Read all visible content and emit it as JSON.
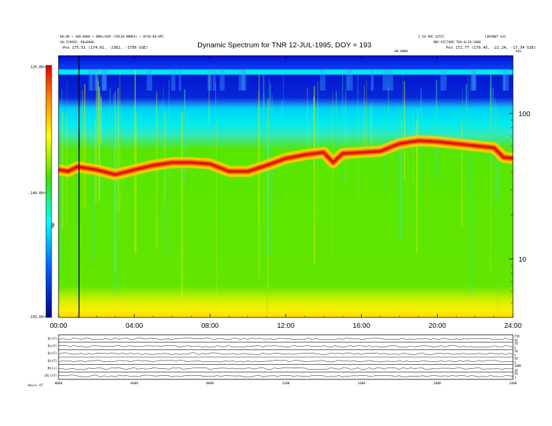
{
  "header": {
    "title": "Dynamic Spectrum for TNR 12-JUL-1995, DOY = 193",
    "left_top_1": "00:00 • 100:0000 • 6MHz/0GP (T0E10:00MEA) • 0F40:00:0PC",
    "left_top_2": "A0:JF8892: #0x0000",
    "left_pos": "Pos 175.51 (174.01, -2382, -1756 GSE)",
    "right_top_1": "1:10 V0C:2UTCC",
    "right_top_2": "L0G900T-eG1",
    "right_top_3": "M0C:PICTURE  TRU:8/20:2080",
    "right_pos": "Pos 172.77 (170.45, -22.24, -17.34 GSE)",
    "center_small": "00:0000",
    "freq_unit": "kHz"
  },
  "colorbar": {
    "ticks": [
      "-125.00",
      "-140.00",
      "-155.00"
    ],
    "label": "TNR"
  },
  "colors": {
    "background": "#58e600",
    "band": "#e0180c",
    "cyan": "#00eaf0",
    "blue": "#0b3ff0",
    "deep_blue": "#0410d6",
    "yellow": "#ffee00",
    "marker": "#000000"
  },
  "chart_data": {
    "type": "heatmap",
    "title": "Dynamic Spectrum for TNR 12-JUL-1995, DOY = 193",
    "x_ticks": [
      "00:00",
      "04:00",
      "08:00",
      "12:00",
      "16:00",
      "20:00",
      "24:00"
    ],
    "y_ticks": [
      "100",
      "10"
    ],
    "colorbar_range": [
      -155,
      -125
    ],
    "marker_time": "01:05",
    "band_trace": [
      {
        "t": 0.0,
        "f": 41
      },
      {
        "t": 0.5,
        "f": 40
      },
      {
        "t": 1.0,
        "f": 43
      },
      {
        "t": 2.0,
        "f": 41
      },
      {
        "t": 3.0,
        "f": 38
      },
      {
        "t": 4.0,
        "f": 41
      },
      {
        "t": 5.0,
        "f": 44
      },
      {
        "t": 6.0,
        "f": 46
      },
      {
        "t": 7.0,
        "f": 46
      },
      {
        "t": 8.0,
        "f": 45
      },
      {
        "t": 9.0,
        "f": 40
      },
      {
        "t": 10.0,
        "f": 40
      },
      {
        "t": 11.0,
        "f": 44
      },
      {
        "t": 12.0,
        "f": 49
      },
      {
        "t": 13.0,
        "f": 52
      },
      {
        "t": 14.0,
        "f": 54
      },
      {
        "t": 14.5,
        "f": 46
      },
      {
        "t": 15.0,
        "f": 53
      },
      {
        "t": 16.0,
        "f": 54
      },
      {
        "t": 17.0,
        "f": 55
      },
      {
        "t": 18.0,
        "f": 62
      },
      {
        "t": 19.0,
        "f": 65
      },
      {
        "t": 20.0,
        "f": 64
      },
      {
        "t": 21.0,
        "f": 62
      },
      {
        "t": 22.0,
        "f": 60
      },
      {
        "t": 23.0,
        "f": 58
      },
      {
        "t": 23.5,
        "f": 50
      },
      {
        "t": 24.0,
        "f": 49
      }
    ]
  },
  "bottom_panel": {
    "rows": [
      {
        "label": "B(nT)",
        "right": [
          "250",
          "50"
        ]
      },
      {
        "label": "B(nT)",
        "right": [
          "20",
          "5"
        ]
      },
      {
        "label": "B(nT)",
        "right": [
          "20",
          "5"
        ]
      },
      {
        "label": "B(nT)",
        "right": [
          "20",
          "5"
        ]
      },
      {
        "label": "N(cc)",
        "right": [
          "1000",
          "10"
        ]
      },
      {
        "label": "|B|(nT)",
        "right": [
          "20",
          "1"
        ]
      }
    ],
    "x_ticks": [
      "0000",
      "0400",
      "0800",
      "1200",
      "1600",
      "2000",
      "2400"
    ],
    "footer": "Hours UT"
  }
}
